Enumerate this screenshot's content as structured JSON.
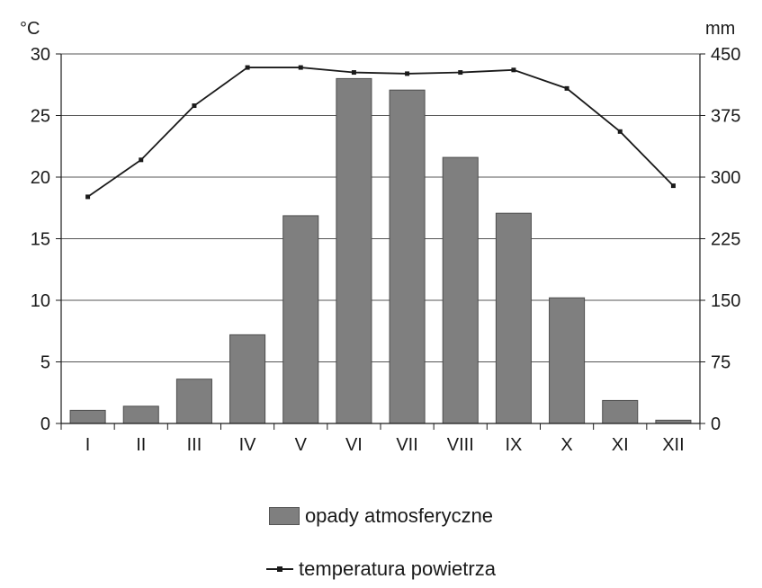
{
  "chart_data": {
    "type": "bar",
    "categories": [
      "I",
      "II",
      "III",
      "IV",
      "V",
      "VI",
      "VII",
      "VIII",
      "IX",
      "X",
      "XI",
      "XII"
    ],
    "left_axis": {
      "unit": "°C",
      "ylim": [
        0,
        30
      ],
      "ticks": [
        "0",
        "5",
        "10",
        "15",
        "20",
        "25",
        "30"
      ]
    },
    "right_axis": {
      "unit": "mm",
      "ylim": [
        0,
        450
      ],
      "ticks": [
        "0",
        "75",
        "150",
        "225",
        "300",
        "375",
        "450"
      ]
    },
    "series": [
      {
        "name": "opady atmosferyczne",
        "type": "bar",
        "axis": "right",
        "color": "#7f7f7f",
        "values": [
          16,
          21,
          54,
          108,
          253,
          420,
          406,
          324,
          256,
          153,
          28,
          4
        ]
      },
      {
        "name": "temperatura powietrza",
        "type": "line",
        "axis": "left",
        "color": "#1a1a1a",
        "values": [
          18.4,
          21.4,
          25.8,
          28.9,
          28.9,
          28.5,
          28.4,
          28.5,
          28.7,
          27.2,
          23.7,
          19.3
        ]
      }
    ],
    "grid": true,
    "legend_position": "bottom"
  },
  "legend": {
    "bar_label": "opady atmosferyczne",
    "line_label": "temperatura powietrza"
  }
}
